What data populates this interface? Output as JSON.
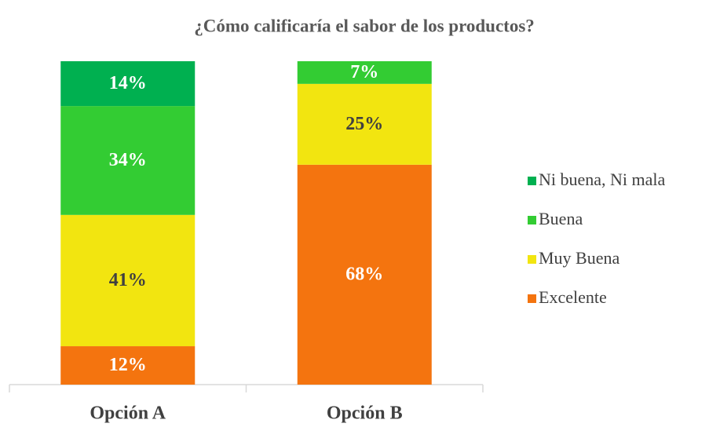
{
  "chart_data": {
    "type": "bar",
    "stacked": "percent",
    "title": "¿Cómo calificaría el sabor de los productos?",
    "categories": [
      "Opción A",
      "Opción B"
    ],
    "series": [
      {
        "name": "Excelente",
        "color": "#f4740f",
        "label_color": "#ffffff",
        "values": [
          12,
          68
        ],
        "value_labels": [
          "12%",
          "68%"
        ]
      },
      {
        "name": "Muy Buena",
        "color": "#f2e510",
        "label_color": "#404040",
        "values": [
          41,
          25
        ],
        "value_labels": [
          "41%",
          "25%"
        ]
      },
      {
        "name": "Buena",
        "color": "#33cc33",
        "label_color": "#ffffff",
        "values": [
          34,
          7
        ],
        "value_labels": [
          "34%",
          "7%"
        ]
      },
      {
        "name": "Ni buena, Ni mala",
        "color": "#00b050",
        "label_color": "#ffffff",
        "values": [
          14,
          null
        ],
        "value_labels": [
          "14%",
          null
        ]
      }
    ],
    "legend": "right"
  }
}
